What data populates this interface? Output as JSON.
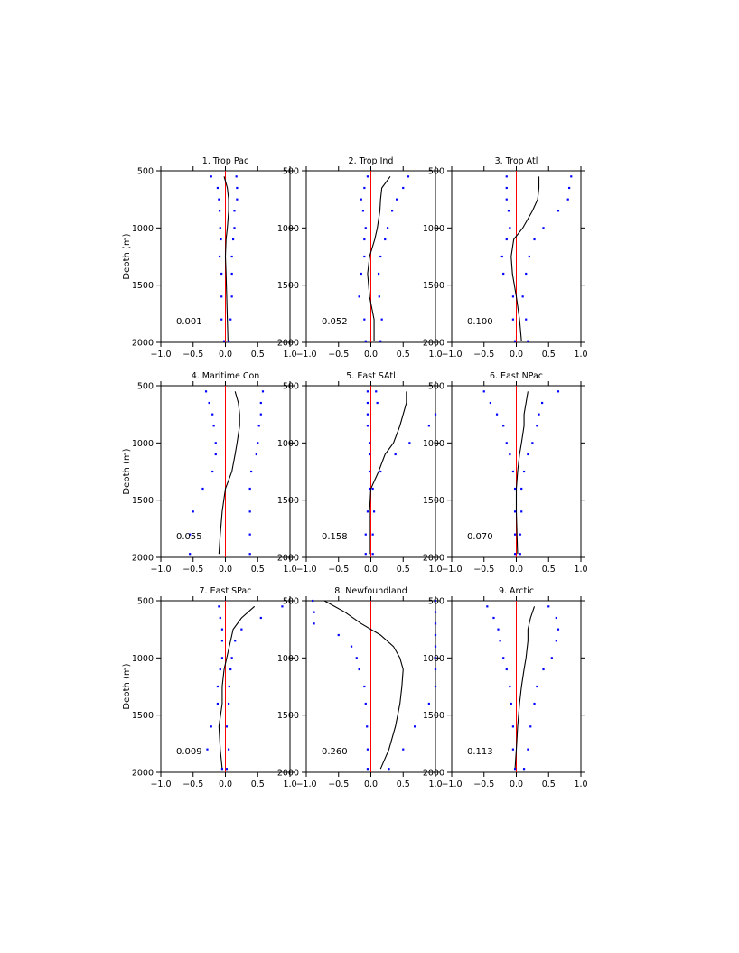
{
  "figure": {
    "ylabel": "Depth (m)"
  },
  "chart_data": [
    {
      "type": "line",
      "title": "1. Trop Pac",
      "annotation": "0.001",
      "xlim": [
        -1.0,
        1.0
      ],
      "ylim": [
        2000,
        500
      ],
      "xticks": [
        "−1.0",
        "−0.5",
        "0.0",
        "0.5",
        "1.0"
      ],
      "yticks": [
        "500",
        "1000",
        "1500",
        "2000"
      ],
      "ylabel": "Depth (m)",
      "depth": [
        550,
        650,
        750,
        850,
        1000,
        1100,
        1250,
        1400,
        1600,
        1800,
        1990
      ],
      "mean": [
        -0.02,
        0.03,
        0.05,
        0.05,
        0.03,
        0.01,
        0.0,
        0.01,
        0.02,
        0.03,
        0.04
      ],
      "lower": [
        -0.22,
        -0.12,
        -0.1,
        -0.09,
        -0.08,
        -0.07,
        -0.09,
        -0.06,
        -0.06,
        -0.06,
        -0.02
      ],
      "upper": [
        0.17,
        0.18,
        0.18,
        0.14,
        0.14,
        0.12,
        0.1,
        0.1,
        0.1,
        0.08,
        0.05
      ]
    },
    {
      "type": "line",
      "title": "2. Trop Ind",
      "annotation": "0.052",
      "xlim": [
        -1.0,
        1.0
      ],
      "ylim": [
        2000,
        500
      ],
      "xticks": [
        "−1.0",
        "−0.5",
        "0.0",
        "0.5",
        "1.0"
      ],
      "yticks": [
        "500",
        "1000",
        "1500",
        "2000"
      ],
      "ylabel": "",
      "depth": [
        550,
        650,
        750,
        850,
        1000,
        1100,
        1250,
        1400,
        1600,
        1800,
        1990
      ],
      "mean": [
        0.3,
        0.17,
        0.15,
        0.14,
        0.1,
        0.06,
        -0.02,
        -0.05,
        -0.02,
        0.05,
        0.05
      ],
      "lower": [
        -0.05,
        -0.1,
        -0.15,
        -0.12,
        -0.08,
        -0.1,
        -0.1,
        -0.15,
        -0.18,
        -0.1,
        -0.08
      ],
      "upper": [
        0.58,
        0.5,
        0.4,
        0.33,
        0.26,
        0.22,
        0.15,
        0.12,
        0.13,
        0.17,
        0.15
      ]
    },
    {
      "type": "line",
      "title": "3. Trop Atl",
      "annotation": "0.100",
      "xlim": [
        -1.0,
        1.0
      ],
      "ylim": [
        2000,
        500
      ],
      "xticks": [
        "−1.0",
        "−0.5",
        "0.0",
        "0.5",
        "1.0"
      ],
      "yticks": [
        "500",
        "1000",
        "1500",
        "2000"
      ],
      "ylabel": "",
      "depth": [
        550,
        650,
        750,
        850,
        1000,
        1100,
        1250,
        1400,
        1600,
        1800,
        1990
      ],
      "mean": [
        0.35,
        0.35,
        0.33,
        0.25,
        0.1,
        -0.04,
        -0.08,
        -0.06,
        0.0,
        0.05,
        0.08
      ],
      "lower": [
        -0.15,
        -0.15,
        -0.15,
        -0.12,
        -0.1,
        -0.15,
        -0.22,
        -0.2,
        -0.05,
        -0.05,
        -0.02
      ],
      "upper": [
        0.85,
        0.82,
        0.8,
        0.65,
        0.42,
        0.28,
        0.2,
        0.15,
        0.1,
        0.15,
        0.18
      ]
    },
    {
      "type": "line",
      "title": "4. Maritime Con",
      "annotation": "0.055",
      "xlim": [
        -1.0,
        1.0
      ],
      "ylim": [
        2000,
        500
      ],
      "xticks": [
        "−1.0",
        "−0.5",
        "0.0",
        "0.5",
        "1.0"
      ],
      "yticks": [
        "500",
        "1000",
        "1500",
        "2000"
      ],
      "ylabel": "Depth (m)",
      "depth": [
        550,
        650,
        750,
        850,
        1000,
        1100,
        1250,
        1400,
        1600,
        1800,
        1970
      ],
      "mean": [
        0.15,
        0.2,
        0.22,
        0.22,
        0.18,
        0.15,
        0.1,
        0.0,
        -0.05,
        -0.08,
        -0.1
      ],
      "lower": [
        -0.3,
        -0.25,
        -0.2,
        -0.18,
        -0.15,
        -0.15,
        -0.2,
        -0.35,
        -0.5,
        -0.55,
        -0.55
      ],
      "upper": [
        0.58,
        0.55,
        0.55,
        0.52,
        0.5,
        0.48,
        0.4,
        0.38,
        0.38,
        0.38,
        0.38
      ]
    },
    {
      "type": "line",
      "title": "5. East SAtl",
      "annotation": "0.158",
      "xlim": [
        -1.0,
        1.0
      ],
      "ylim": [
        2000,
        500
      ],
      "xticks": [
        "−1.0",
        "−0.5",
        "0.0",
        "0.5",
        "1.0"
      ],
      "yticks": [
        "500",
        "1000",
        "1500",
        "2000"
      ],
      "ylabel": "",
      "depth": [
        550,
        650,
        750,
        850,
        1000,
        1100,
        1250,
        1400,
        1600,
        1800,
        1970
      ],
      "mean": [
        0.55,
        0.55,
        0.5,
        0.45,
        0.35,
        0.22,
        0.12,
        0.0,
        -0.02,
        -0.02,
        -0.02
      ],
      "lower": [
        -0.05,
        -0.05,
        -0.05,
        -0.05,
        -0.02,
        -0.02,
        -0.02,
        -0.02,
        -0.05,
        -0.08,
        -0.08
      ],
      "upper": [
        0.08,
        0.1,
        1.0,
        0.9,
        0.6,
        0.38,
        0.15,
        0.03,
        0.05,
        0.03,
        0.03
      ]
    },
    {
      "type": "line",
      "title": "6. East NPac",
      "annotation": "0.070",
      "xlim": [
        -1.0,
        1.0
      ],
      "ylim": [
        2000,
        500
      ],
      "xticks": [
        "−1.0",
        "−0.5",
        "0.0",
        "0.5",
        "1.0"
      ],
      "yticks": [
        "500",
        "1000",
        "1500",
        "2000"
      ],
      "ylabel": "",
      "depth": [
        550,
        650,
        750,
        850,
        1000,
        1100,
        1250,
        1400,
        1600,
        1800,
        1970
      ],
      "mean": [
        0.18,
        0.15,
        0.12,
        0.12,
        0.08,
        0.05,
        0.02,
        0.0,
        0.0,
        0.01,
        0.02
      ],
      "lower": [
        -0.5,
        -0.4,
        -0.3,
        -0.2,
        -0.15,
        -0.1,
        -0.05,
        -0.02,
        -0.02,
        -0.02,
        -0.02
      ],
      "upper": [
        0.65,
        0.4,
        0.35,
        0.32,
        0.25,
        0.18,
        0.12,
        0.08,
        0.08,
        0.06,
        0.06
      ]
    },
    {
      "type": "line",
      "title": "7. East SPac",
      "annotation": "0.009",
      "xlim": [
        -1.0,
        1.0
      ],
      "ylim": [
        2000,
        500
      ],
      "xticks": [
        "−1.0",
        "−0.5",
        "0.0",
        "0.5",
        "1.0"
      ],
      "yticks": [
        "500",
        "1000",
        "1500",
        "2000"
      ],
      "ylabel": "Depth (m)",
      "depth": [
        550,
        650,
        750,
        850,
        1000,
        1100,
        1250,
        1400,
        1600,
        1800,
        1970
      ],
      "mean": [
        0.45,
        0.25,
        0.12,
        0.08,
        0.02,
        -0.02,
        -0.05,
        -0.05,
        -0.1,
        -0.08,
        -0.05
      ],
      "lower": [
        -0.1,
        -0.08,
        -0.05,
        -0.05,
        -0.05,
        -0.08,
        -0.12,
        -0.12,
        -0.22,
        -0.28,
        -0.05
      ],
      "upper": [
        0.88,
        0.55,
        0.25,
        0.15,
        0.1,
        0.08,
        0.06,
        0.05,
        0.02,
        0.05,
        0.02
      ]
    },
    {
      "type": "line",
      "title": "8. Newfoundland",
      "annotation": "0.260",
      "xlim": [
        -1.0,
        1.0
      ],
      "ylim": [
        2000,
        500
      ],
      "xticks": [
        "−1.0",
        "−0.5",
        "0.0",
        "0.5",
        "1.0"
      ],
      "yticks": [
        "500",
        "1000",
        "1500",
        "2000"
      ],
      "ylabel": "",
      "depth": [
        500,
        600,
        700,
        800,
        900,
        1000,
        1100,
        1250,
        1400,
        1600,
        1800,
        1970
      ],
      "mean": [
        -0.72,
        -0.4,
        -0.15,
        0.15,
        0.35,
        0.45,
        0.5,
        0.48,
        0.45,
        0.38,
        0.28,
        0.15
      ],
      "lower": [
        -0.9,
        -0.88,
        -0.88,
        -0.5,
        -0.3,
        -0.22,
        -0.18,
        -0.1,
        -0.08,
        -0.06,
        -0.05,
        -0.05
      ],
      "upper": [
        1.0,
        1.0,
        1.0,
        1.0,
        1.0,
        1.0,
        1.0,
        1.0,
        0.9,
        0.68,
        0.5,
        0.28
      ]
    },
    {
      "type": "line",
      "title": "9. Arctic",
      "annotation": "0.113",
      "xlim": [
        -1.0,
        1.0
      ],
      "ylim": [
        2000,
        500
      ],
      "xticks": [
        "−1.0",
        "−0.5",
        "0.0",
        "0.5",
        "1.0"
      ],
      "yticks": [
        "500",
        "1000",
        "1500",
        "2000"
      ],
      "ylabel": "",
      "depth": [
        550,
        650,
        750,
        850,
        1000,
        1100,
        1250,
        1400,
        1600,
        1800,
        1970
      ],
      "mean": [
        0.28,
        0.22,
        0.18,
        0.18,
        0.15,
        0.12,
        0.08,
        0.05,
        0.02,
        0.0,
        -0.02
      ],
      "lower": [
        -0.45,
        -0.35,
        -0.28,
        -0.25,
        -0.2,
        -0.15,
        -0.1,
        -0.08,
        -0.05,
        -0.05,
        -0.02
      ],
      "upper": [
        0.5,
        0.62,
        0.65,
        0.62,
        0.55,
        0.42,
        0.32,
        0.28,
        0.22,
        0.18,
        0.12
      ]
    }
  ]
}
